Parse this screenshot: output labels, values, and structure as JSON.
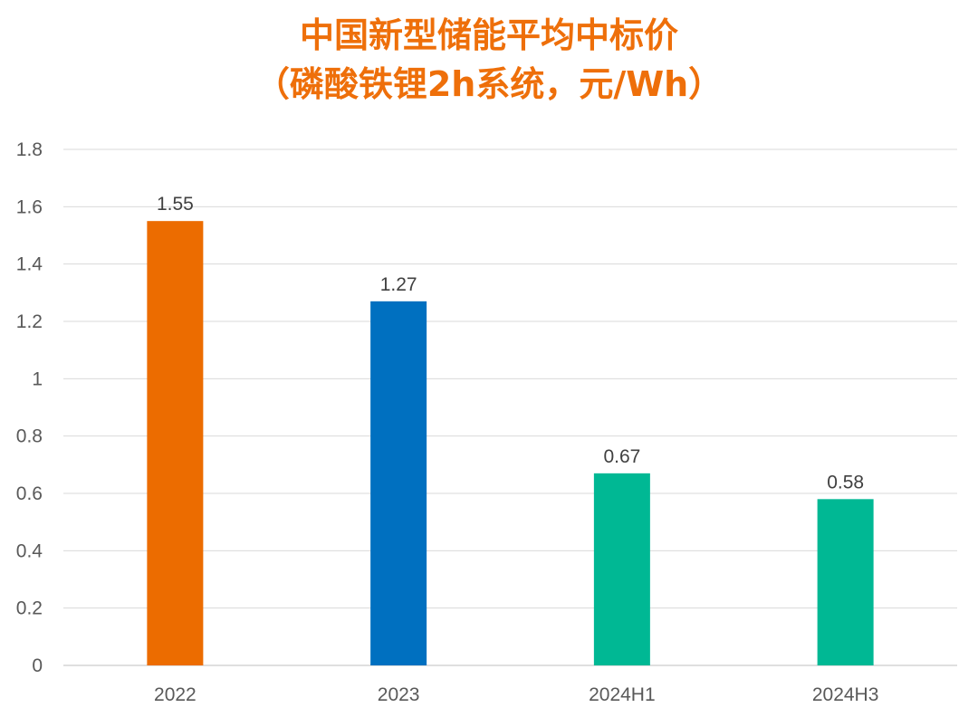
{
  "chart_data": {
    "type": "bar",
    "title": "中国新型储能平均中标价",
    "subtitle": "（磷酸铁锂2h系统，元/Wh）",
    "xlabel": "",
    "ylabel": "",
    "categories": [
      "2022",
      "2023",
      "2024H1",
      "2024H3"
    ],
    "values": [
      1.55,
      1.27,
      0.67,
      0.58
    ],
    "data_labels": [
      "1.55",
      "1.27",
      "0.67",
      "0.58"
    ],
    "bar_colors": [
      "#ec6c00",
      "#0070c0",
      "#00b894",
      "#00b894"
    ],
    "ylim": [
      0,
      1.8
    ],
    "yticks": [
      0,
      0.2,
      0.4,
      0.6,
      0.8,
      1,
      1.2,
      1.4,
      1.6,
      1.8
    ],
    "ytick_labels": [
      "0",
      "0.2",
      "0.4",
      "0.6",
      "0.8",
      "1",
      "1.2",
      "1.4",
      "1.6",
      "1.8"
    ],
    "grid": true,
    "legend": "none",
    "title_color": "#ee6f0a"
  }
}
